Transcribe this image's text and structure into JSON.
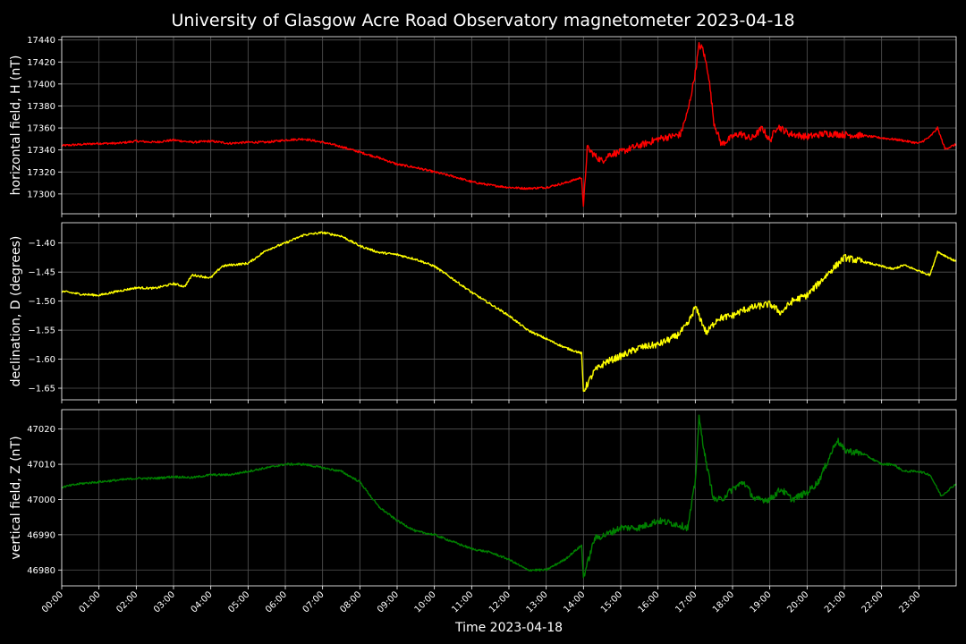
{
  "chart_data": {
    "title": "University of Glasgow Acre Road Observatory magnetometer 2023-04-18",
    "xlabel": "Time 2023-04-18",
    "x_tick_labels": [
      "00:00",
      "01:00",
      "02:00",
      "03:00",
      "04:00",
      "05:00",
      "06:00",
      "07:00",
      "08:00",
      "09:00",
      "10:00",
      "11:00",
      "12:00",
      "13:00",
      "14:00",
      "15:00",
      "16:00",
      "17:00",
      "18:00",
      "19:00",
      "20:00",
      "21:00",
      "22:00",
      "23:00"
    ],
    "xlim_hours": [
      0,
      24
    ],
    "grid": true,
    "background": "#000000",
    "panels": [
      {
        "type": "line",
        "ylabel": "horizontal field, H (nT)",
        "color": "#ff0000",
        "ylim": [
          17282,
          17443
        ],
        "yticks": [
          17300,
          17320,
          17340,
          17360,
          17380,
          17400,
          17420,
          17440
        ],
        "x": [
          0,
          0.5,
          1,
          1.5,
          2,
          2.5,
          3,
          3.5,
          4,
          4.5,
          5,
          5.5,
          6,
          6.5,
          7,
          7.5,
          8,
          8.5,
          9,
          9.5,
          10,
          10.5,
          11,
          11.5,
          12,
          12.5,
          13,
          13.5,
          13.95,
          14.0,
          14.1,
          14.3,
          14.5,
          14.7,
          15,
          15.3,
          15.6,
          16,
          16.3,
          16.6,
          16.8,
          17.0,
          17.1,
          17.2,
          17.35,
          17.5,
          17.7,
          18,
          18.2,
          18.5,
          18.8,
          19,
          19.2,
          19.5,
          20,
          20.5,
          21,
          21.5,
          22,
          22.5,
          23,
          23.3,
          23.5,
          23.7,
          24
        ],
        "values": [
          17344,
          17345,
          17346,
          17346,
          17348,
          17347,
          17349,
          17347,
          17348,
          17346,
          17347,
          17347,
          17349,
          17350,
          17347,
          17343,
          17338,
          17333,
          17327,
          17324,
          17320,
          17316,
          17311,
          17308,
          17306,
          17305,
          17306,
          17310,
          17315,
          17288,
          17342,
          17335,
          17330,
          17336,
          17338,
          17342,
          17345,
          17350,
          17352,
          17354,
          17375,
          17410,
          17435,
          17432,
          17410,
          17365,
          17345,
          17352,
          17355,
          17350,
          17360,
          17348,
          17362,
          17355,
          17352,
          17355,
          17354,
          17353,
          17351,
          17349,
          17346,
          17352,
          17360,
          17341,
          17345
        ]
      },
      {
        "type": "line",
        "ylabel": "declination, D (degrees)",
        "color": "#ffff00",
        "ylim": [
          -1.67,
          -1.365
        ],
        "yticks": [
          -1.65,
          -1.6,
          -1.55,
          -1.5,
          -1.45,
          -1.4
        ],
        "x": [
          0,
          0.5,
          1,
          1.5,
          2,
          2.5,
          3,
          3.3,
          3.5,
          4,
          4.3,
          4.5,
          5,
          5.5,
          6,
          6.5,
          7,
          7.5,
          8,
          8.5,
          9,
          9.5,
          10,
          10.5,
          11,
          11.5,
          12,
          12.5,
          13,
          13.5,
          13.95,
          14.0,
          14.3,
          14.6,
          15,
          15.5,
          16,
          16.5,
          16.8,
          17,
          17.3,
          17.6,
          18,
          18.3,
          18.6,
          19,
          19.3,
          19.6,
          20,
          20.3,
          20.6,
          21,
          21.5,
          22,
          22.3,
          22.6,
          23,
          23.3,
          23.5,
          24
        ],
        "values": [
          -1.483,
          -1.488,
          -1.49,
          -1.483,
          -1.477,
          -1.478,
          -1.47,
          -1.475,
          -1.455,
          -1.46,
          -1.44,
          -1.438,
          -1.435,
          -1.412,
          -1.4,
          -1.386,
          -1.382,
          -1.388,
          -1.405,
          -1.416,
          -1.42,
          -1.428,
          -1.44,
          -1.462,
          -1.485,
          -1.505,
          -1.525,
          -1.55,
          -1.565,
          -1.58,
          -1.59,
          -1.655,
          -1.62,
          -1.605,
          -1.595,
          -1.58,
          -1.575,
          -1.56,
          -1.54,
          -1.51,
          -1.555,
          -1.53,
          -1.525,
          -1.515,
          -1.51,
          -1.505,
          -1.52,
          -1.5,
          -1.49,
          -1.47,
          -1.45,
          -1.425,
          -1.432,
          -1.44,
          -1.445,
          -1.438,
          -1.448,
          -1.455,
          -1.415,
          -1.432
        ]
      },
      {
        "type": "line",
        "ylabel": "vertical field, Z (nT)",
        "color": "#008000",
        "ylim": [
          46975.5,
          47025.5
        ],
        "yticks": [
          46980,
          46990,
          47000,
          47010,
          47020
        ],
        "x": [
          0,
          0.5,
          1,
          1.5,
          2,
          2.5,
          3,
          3.5,
          4,
          4.5,
          5,
          5.5,
          6,
          6.5,
          7,
          7.5,
          8,
          8.5,
          9,
          9.5,
          10,
          10.5,
          11,
          11.5,
          12,
          12.5,
          13,
          13.5,
          13.95,
          14.0,
          14.3,
          14.6,
          15,
          15.5,
          16,
          16.5,
          16.8,
          17,
          17.1,
          17.3,
          17.5,
          17.7,
          18,
          18.3,
          18.6,
          19,
          19.3,
          19.6,
          20,
          20.3,
          20.6,
          20.8,
          21,
          21.5,
          22,
          22.3,
          22.6,
          23,
          23.3,
          23.6,
          24
        ],
        "values": [
          47003.5,
          47004.5,
          47005,
          47005.5,
          47006,
          47006,
          47006.5,
          47006.2,
          47007,
          47007,
          47008,
          47009,
          47010,
          47010,
          47009,
          47008,
          47005,
          46998,
          46994,
          46991,
          46990,
          46988,
          46986,
          46985,
          46983,
          46980,
          46980,
          46983,
          46987,
          46978,
          46989,
          46990,
          46992,
          46992,
          46994,
          46993,
          46992,
          47005,
          47023,
          47010,
          47000,
          47000,
          47003,
          47005,
          47000,
          47000,
          47003,
          47000,
          47002,
          47005,
          47012,
          47017,
          47014,
          47013,
          47010,
          47010,
          47008,
          47008,
          47007,
          47001,
          47004.5
        ]
      }
    ]
  }
}
